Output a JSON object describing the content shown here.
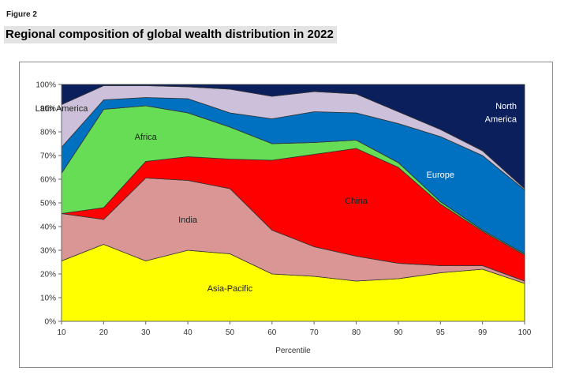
{
  "figure_label": "Figure 2",
  "figure_title": "Regional composition of global wealth distribution in 2022",
  "chart_data": {
    "type": "area",
    "stacked": true,
    "percent": true,
    "x": [
      "10",
      "20",
      "30",
      "40",
      "50",
      "60",
      "70",
      "80",
      "90",
      "95",
      "99",
      "100"
    ],
    "xlabel": "Percentile",
    "ylabel": "",
    "ylim": [
      0,
      100
    ],
    "yticks": [
      "0%",
      "10%",
      "20%",
      "30%",
      "40%",
      "50%",
      "60%",
      "70%",
      "80%",
      "90%",
      "100%"
    ],
    "grid": false,
    "legend": "inline labels",
    "series": [
      {
        "name": "Asia-Pacific",
        "color": "#ffff00",
        "values": [
          25.5,
          32.5,
          25.5,
          30,
          28.5,
          20,
          19,
          17,
          18,
          20.5,
          22,
          16
        ]
      },
      {
        "name": "India",
        "color": "#d99694",
        "values": [
          20,
          10.5,
          35,
          29.5,
          27.5,
          18.5,
          12.5,
          10.5,
          6.5,
          3,
          1.5,
          1
        ]
      },
      {
        "name": "China",
        "color": "#ff0000",
        "values": [
          0,
          5,
          7,
          10,
          12.5,
          29.5,
          39,
          45.5,
          40.5,
          26,
          14.5,
          11
        ]
      },
      {
        "name": "Africa",
        "color": "#66dd55",
        "values": [
          17,
          41.5,
          23.5,
          18.5,
          13.5,
          7,
          5,
          3.5,
          2,
          1,
          0.5,
          0.5
        ]
      },
      {
        "name": "Europe",
        "color": "#0070c0",
        "values": [
          11,
          4,
          3.5,
          6,
          6,
          10.5,
          13,
          11.5,
          16.5,
          27.5,
          31.5,
          27
        ]
      },
      {
        "name": "Latin America",
        "color": "#ccc0da",
        "values": [
          18,
          6,
          5,
          5,
          10,
          9.5,
          8.5,
          8,
          5,
          3,
          2,
          0.5
        ]
      },
      {
        "name": "North America",
        "color": "#0b1f5c",
        "values": [
          8.5,
          0.5,
          0.5,
          1,
          2,
          5,
          3,
          4,
          11.5,
          19,
          28,
          44
        ]
      }
    ],
    "annotations": [
      {
        "text": "Asia-Pacific",
        "x": "50",
        "y": 14
      },
      {
        "text": "India",
        "x": "40",
        "y": 43
      },
      {
        "text": "China",
        "x": "80",
        "y": 51
      },
      {
        "text": "Africa",
        "x": "30",
        "y": 78
      },
      {
        "text": "Europe",
        "x": "95",
        "y": 62
      },
      {
        "text": "Latin America",
        "x": "55",
        "y": 90
      },
      {
        "text": "North",
        "x": "100",
        "y": 91,
        "align": "right"
      },
      {
        "text": "America",
        "x": "100",
        "y": 85.5,
        "align": "right"
      }
    ]
  }
}
